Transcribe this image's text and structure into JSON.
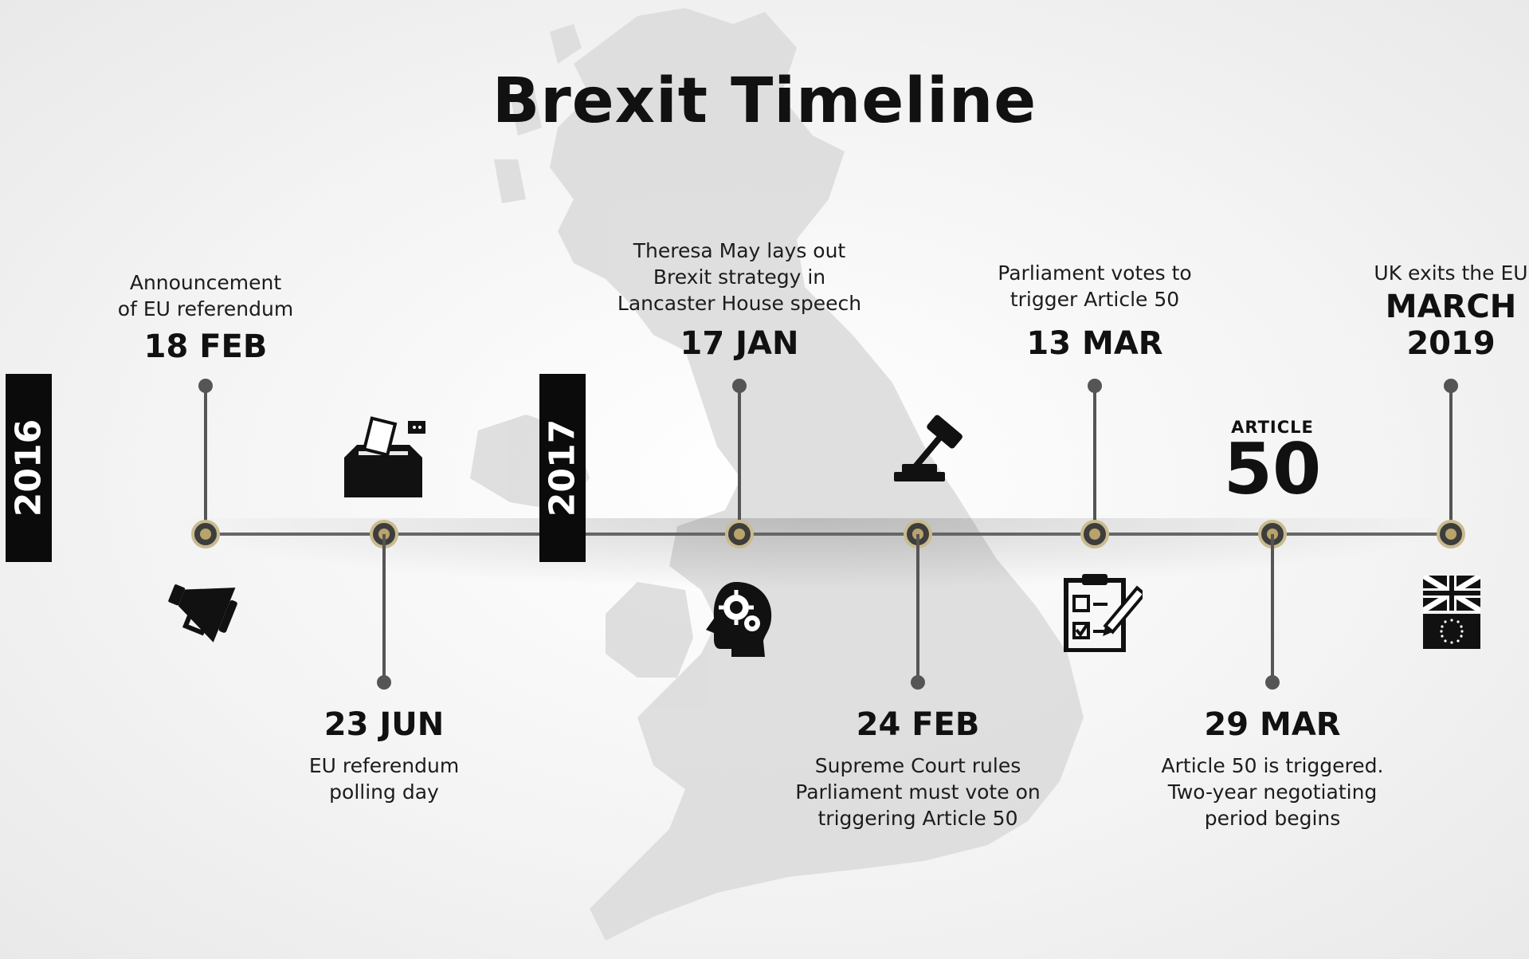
{
  "title": "Brexit Timeline",
  "years": [
    "2016",
    "2017"
  ],
  "events": [
    {
      "date": "18 FEB",
      "description": [
        "Announcement",
        "of EU referendum"
      ],
      "position": "above",
      "icon": "megaphone-icon"
    },
    {
      "date": "23 JUN",
      "description": [
        "EU referendum",
        "polling day"
      ],
      "position": "below",
      "icon": "ballot-box-icon"
    },
    {
      "date": "17 JAN",
      "description": [
        "Theresa May lays out",
        "Brexit strategy in",
        "Lancaster House speech"
      ],
      "position": "above",
      "icon": "head-gears-icon"
    },
    {
      "date": "24 FEB",
      "description": [
        "Supreme Court rules",
        "Parliament must vote on",
        "triggering Article 50"
      ],
      "position": "below",
      "icon": "gavel-icon"
    },
    {
      "date": "13 MAR",
      "description": [
        "Parliament votes to",
        "trigger Article 50"
      ],
      "position": "above",
      "icon": "clipboard-checklist-icon"
    },
    {
      "date": "29 MAR",
      "description": [
        "Article 50 is triggered.",
        "Two-year negotiating",
        "period begins"
      ],
      "position": "below",
      "icon": "article-50-label"
    },
    {
      "date": [
        "MARCH",
        "2019"
      ],
      "description": [
        "UK exits the EU"
      ],
      "position": "above",
      "icon": "uk-eu-flags-icon"
    }
  ],
  "article50": {
    "small": "ARTICLE",
    "large": "50"
  },
  "colors": {
    "axis": "#666666",
    "node_ring": "#c9bb8f",
    "node_center": "#b8a46a",
    "year_bar": "#0b0b0b",
    "map": "#dcdcdc"
  }
}
